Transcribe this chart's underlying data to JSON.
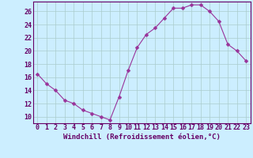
{
  "x": [
    0,
    1,
    2,
    3,
    4,
    5,
    6,
    7,
    8,
    9,
    10,
    11,
    12,
    13,
    14,
    15,
    16,
    17,
    18,
    19,
    20,
    21,
    22,
    23
  ],
  "y": [
    16.5,
    15.0,
    14.0,
    12.5,
    12.0,
    11.0,
    10.5,
    10.0,
    9.5,
    13.0,
    17.0,
    20.5,
    22.5,
    23.5,
    25.0,
    26.5,
    26.5,
    27.0,
    27.0,
    26.0,
    24.5,
    21.0,
    20.0,
    18.5
  ],
  "line_color": "#993399",
  "marker": "D",
  "marker_size": 2.5,
  "xlabel": "Windchill (Refroidissement éolien,°C)",
  "ylabel_ticks": [
    10,
    12,
    14,
    16,
    18,
    20,
    22,
    24,
    26
  ],
  "ylim": [
    9,
    27.5
  ],
  "xlim": [
    -0.5,
    23.5
  ],
  "bg_color": "#cceeff",
  "grid_color": "#aacccc",
  "tick_color": "#660066",
  "label_color": "#660066",
  "font_size_xlabel": 6.5,
  "font_size_ytick": 6,
  "font_size_xtick": 6
}
